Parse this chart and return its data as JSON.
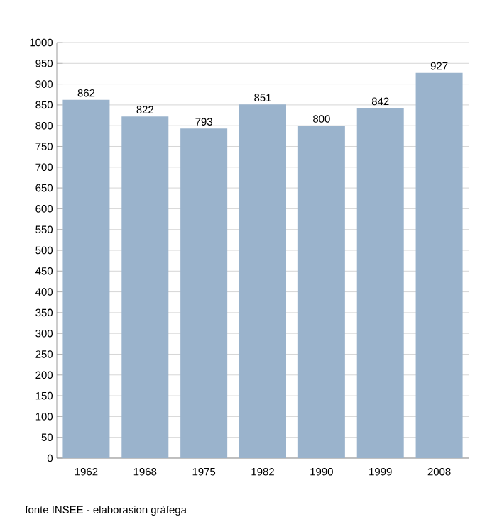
{
  "chart_data": {
    "type": "bar",
    "categories": [
      "1962",
      "1968",
      "1975",
      "1982",
      "1990",
      "1999",
      "2008"
    ],
    "values": [
      862,
      822,
      793,
      851,
      800,
      842,
      927
    ],
    "color": "#9ab3cc",
    "ylim": [
      0,
      1000
    ],
    "yticks": [
      0,
      50,
      100,
      150,
      200,
      250,
      300,
      350,
      400,
      450,
      500,
      550,
      600,
      650,
      700,
      750,
      800,
      850,
      900,
      950,
      1000
    ],
    "grid": "y",
    "data_labels": true,
    "annotations": [
      "fonte INSEE - elaborasion gràfega"
    ]
  }
}
